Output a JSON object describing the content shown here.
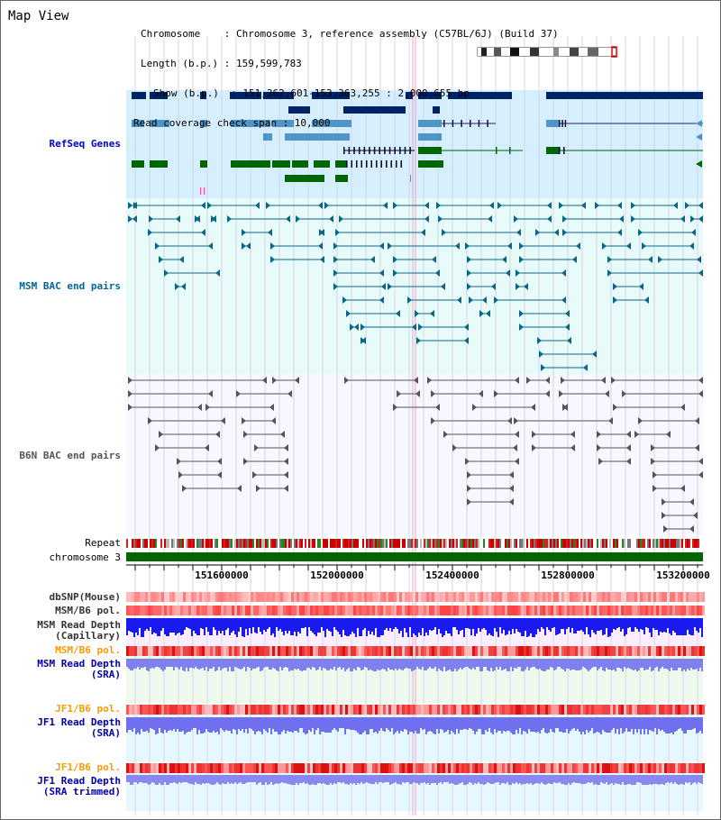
{
  "panel": {
    "title": "Map View",
    "info_lines": [
      "Chromosome    : Chromosome 3, reference assembly (C57BL/6J) (Build 37)",
      "Length (b.p.) : 159,599,783",
      "Show (b.p.)  : 151,362,601-153,363,255 : 2,000,655 bp",
      "Read coverage check span : 10,000"
    ]
  },
  "tracks": {
    "refseq": {
      "label": "RefSeq Genes",
      "color": "#0000cc"
    },
    "msm_bac": {
      "label": "MSM BAC end pairs",
      "color": "#006699"
    },
    "b6n_bac": {
      "label": "B6N BAC end pairs",
      "color": "#555555"
    },
    "repeat": {
      "label": "Repeat"
    },
    "chromosome": {
      "label": "chromosome 3"
    },
    "dbsnp": {
      "label": "dbSNP(Mouse)"
    },
    "msm_b6_pol_1": {
      "label": "MSM/B6 pol."
    },
    "msm_read_depth_cap": {
      "label_line1": "MSM Read Depth",
      "label_line2": "(Capillary)"
    },
    "msm_b6_pol_2": {
      "label": "MSM/B6 pol.",
      "color": "#ff9900"
    },
    "msm_read_depth_sra": {
      "label_line1": "MSM Read Depth",
      "label_line2": "(SRA)"
    },
    "jf1_b6_pol_1": {
      "label": "JF1/B6 pol.",
      "color": "#ff9900"
    },
    "jf1_read_depth_sra": {
      "label_line1": "JF1 Read Depth",
      "label_line2": "(SRA)"
    },
    "jf1_b6_pol_2": {
      "label": "JF1/B6 pol.",
      "color": "#ff9900"
    },
    "jf1_read_depth_trim": {
      "label_line1": "JF1 Read Depth",
      "label_line2": "(SRA trimmed)"
    }
  },
  "axis": {
    "ticks": [
      "151600000",
      "152000000",
      "152400000",
      "152800000",
      "153200000"
    ]
  },
  "colors": {
    "refseq_bg": "#d6efff",
    "msm_bg": "#e8fbfb",
    "b6n_bg": "#f7f7ff",
    "dark_gene": "#002266",
    "mid_gene": "#4f95c8",
    "green_gene": "#006600",
    "msm_line": "#0b6685",
    "b6n_line": "#555555",
    "chromosome": "#006600"
  }
}
